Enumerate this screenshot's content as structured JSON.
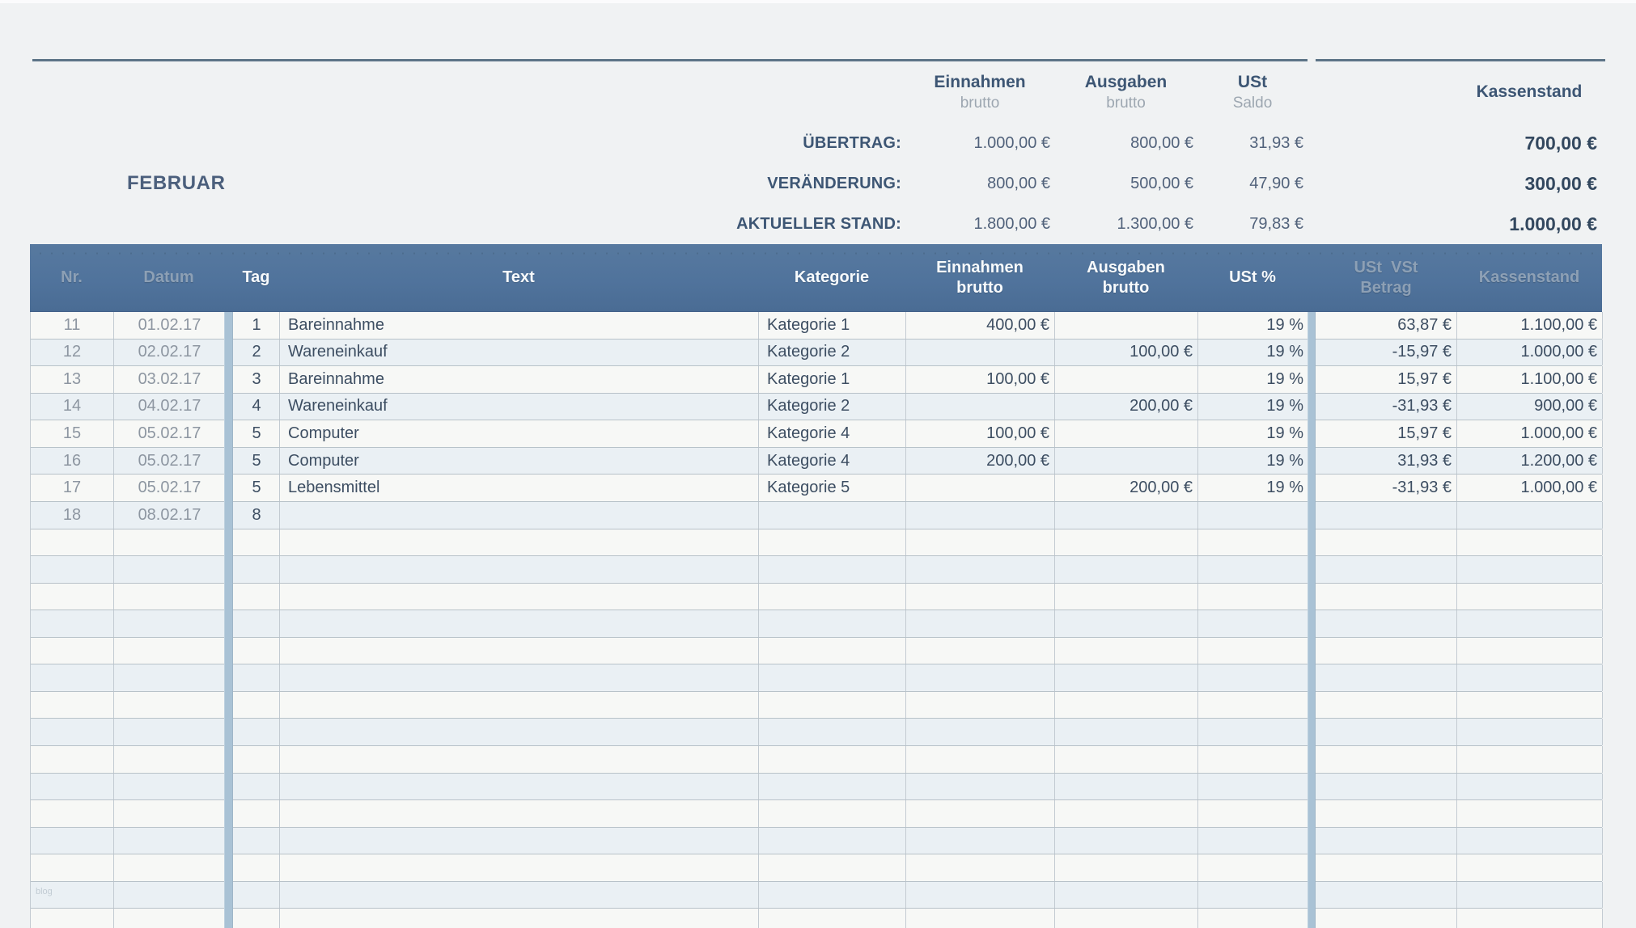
{
  "summary": {
    "month": "FEBRUAR",
    "column_headers": [
      {
        "key": "einnahmen",
        "title": "Einnahmen",
        "subtitle": "brutto"
      },
      {
        "key": "ausgaben",
        "title": "Ausgaben",
        "subtitle": "brutto"
      },
      {
        "key": "ust",
        "title": "USt",
        "subtitle": "Saldo"
      },
      {
        "key": "kassenstand",
        "title": "Kassenstand",
        "subtitle": ""
      }
    ],
    "rows": [
      {
        "label": "ÜBERTRAG:",
        "einnahmen": "1.000,00 €",
        "ausgaben": "800,00 €",
        "ust": "31,93 €",
        "kassenstand": "700,00 €"
      },
      {
        "label": "VERÄNDERUNG:",
        "einnahmen": "800,00 €",
        "ausgaben": "500,00 €",
        "ust": "47,90 €",
        "kassenstand": "300,00 €"
      },
      {
        "label": "AKTUELLER STAND:",
        "einnahmen": "1.800,00 €",
        "ausgaben": "1.300,00 €",
        "ust": "79,83 €",
        "kassenstand": "1.000,00 €"
      }
    ]
  },
  "table": {
    "column_headers": [
      {
        "key": "nr",
        "lines": [
          "Nr."
        ],
        "muted": true
      },
      {
        "key": "datum",
        "lines": [
          "Datum"
        ],
        "muted": true
      },
      {
        "key": "tag",
        "lines": [
          "Tag"
        ],
        "muted": false
      },
      {
        "key": "text",
        "lines": [
          "Text"
        ],
        "muted": false
      },
      {
        "key": "kategorie",
        "lines": [
          "Kategorie"
        ],
        "muted": false
      },
      {
        "key": "einnahmen",
        "lines": [
          "Einnahmen",
          "brutto"
        ],
        "muted": false
      },
      {
        "key": "ausgaben",
        "lines": [
          "Ausgaben",
          "brutto"
        ],
        "muted": false
      },
      {
        "key": "ust",
        "lines": [
          "USt %"
        ],
        "muted": false
      },
      {
        "key": "betrag",
        "lines": [
          "USt  VSt",
          "Betrag"
        ],
        "muted": true
      },
      {
        "key": "kassenstand",
        "lines": [
          "Kassenstand"
        ],
        "muted": true
      }
    ],
    "rows": [
      {
        "nr": "11",
        "datum": "01.02.17",
        "tag": "1",
        "text": "Bareinnahme",
        "kategorie": "Kategorie 1",
        "einnahmen": "400,00 €",
        "ausgaben": "",
        "ust": "19 %",
        "betrag": "63,87 €",
        "kassenstand": "1.100,00 €"
      },
      {
        "nr": "12",
        "datum": "02.02.17",
        "tag": "2",
        "text": "Wareneinkauf",
        "kategorie": "Kategorie 2",
        "einnahmen": "",
        "ausgaben": "100,00 €",
        "ust": "19 %",
        "betrag": "-15,97 €",
        "kassenstand": "1.000,00 €"
      },
      {
        "nr": "13",
        "datum": "03.02.17",
        "tag": "3",
        "text": "Bareinnahme",
        "kategorie": "Kategorie 1",
        "einnahmen": "100,00 €",
        "ausgaben": "",
        "ust": "19 %",
        "betrag": "15,97 €",
        "kassenstand": "1.100,00 €"
      },
      {
        "nr": "14",
        "datum": "04.02.17",
        "tag": "4",
        "text": "Wareneinkauf",
        "kategorie": "Kategorie 2",
        "einnahmen": "",
        "ausgaben": "200,00 €",
        "ust": "19 %",
        "betrag": "-31,93 €",
        "kassenstand": "900,00 €"
      },
      {
        "nr": "15",
        "datum": "05.02.17",
        "tag": "5",
        "text": "Computer",
        "kategorie": "Kategorie 4",
        "einnahmen": "100,00 €",
        "ausgaben": "",
        "ust": "19 %",
        "betrag": "15,97 €",
        "kassenstand": "1.000,00 €"
      },
      {
        "nr": "16",
        "datum": "05.02.17",
        "tag": "5",
        "text": "Computer",
        "kategorie": "Kategorie 4",
        "einnahmen": "200,00 €",
        "ausgaben": "",
        "ust": "19 %",
        "betrag": "31,93 €",
        "kassenstand": "1.200,00 €"
      },
      {
        "nr": "17",
        "datum": "05.02.17",
        "tag": "5",
        "text": "Lebensmittel",
        "kategorie": "Kategorie 5",
        "einnahmen": "",
        "ausgaben": "200,00 €",
        "ust": "19 %",
        "betrag": "-31,93 €",
        "kassenstand": "1.000,00 €"
      },
      {
        "nr": "18",
        "datum": "08.02.17",
        "tag": "8",
        "text": "",
        "kategorie": "",
        "einnahmen": "",
        "ausgaben": "",
        "ust": "",
        "betrag": "",
        "kassenstand": ""
      }
    ],
    "empty_row_count": 15
  },
  "watermark": "blog",
  "colors": {
    "header_blue_top": "#57799f",
    "header_blue_bottom": "#4a6c94",
    "divider_blue": "#a9c2d5",
    "row_white": "#f7f8f6",
    "row_blue": "#eaf0f4",
    "accent_text": "#3d5674"
  }
}
